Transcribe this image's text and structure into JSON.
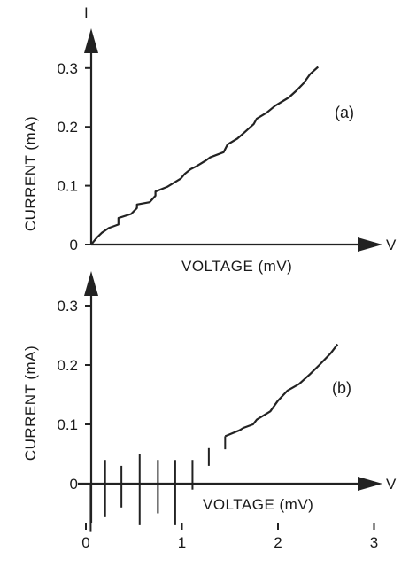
{
  "chart_data": [
    {
      "panel": "(a)",
      "type": "line",
      "xlabel": "VOLTAGE (mV)",
      "ylabel": "CURRENT (mA)",
      "x_axis_symbol": "V",
      "y_axis_symbol": "I",
      "ylim": [
        0,
        0.35
      ],
      "yticks": [
        "0",
        "0.1",
        "0.2",
        "0.3"
      ],
      "ytick_values": [
        0,
        0.1,
        0.2,
        0.3
      ],
      "series": [
        {
          "x": [
            0.0,
            0.02,
            0.06,
            0.11,
            0.18,
            0.28,
            0.28,
            0.41,
            0.47,
            0.47,
            0.6,
            0.66,
            0.66,
            0.78,
            0.83,
            0.92,
            0.96,
            1.02,
            1.08,
            1.18,
            1.22,
            1.36,
            1.4,
            1.5,
            1.57,
            1.67,
            1.7,
            1.8,
            1.89,
            1.97,
            2.03,
            2.11,
            2.18,
            2.25,
            2.33
          ],
          "y": [
            0.0,
            0.004,
            0.012,
            0.02,
            0.028,
            0.034,
            0.045,
            0.052,
            0.062,
            0.068,
            0.072,
            0.083,
            0.09,
            0.098,
            0.103,
            0.112,
            0.12,
            0.128,
            0.133,
            0.143,
            0.148,
            0.157,
            0.17,
            0.18,
            0.19,
            0.205,
            0.214,
            0.224,
            0.236,
            0.244,
            0.25,
            0.262,
            0.274,
            0.29,
            0.302
          ]
        }
      ]
    },
    {
      "panel": "(b)",
      "type": "line",
      "xlabel": "VOLTAGE (mV)",
      "ylabel": "CURRENT (mA)",
      "x_axis_symbol": "V",
      "xlim": [
        0,
        3
      ],
      "ylim": [
        -0.09,
        0.35
      ],
      "xticks": [
        "0",
        "1",
        "2",
        "3"
      ],
      "xtick_values": [
        0,
        1,
        2,
        3
      ],
      "yticks": [
        "0",
        "0.1",
        "0.2",
        "0.3"
      ],
      "ytick_values": [
        0,
        0.1,
        0.2,
        0.3
      ],
      "vertical_segments": [
        {
          "x": 0.05,
          "ymin": -0.08,
          "ymax": 0.0
        },
        {
          "x": 0.2,
          "ymin": -0.055,
          "ymax": 0.04
        },
        {
          "x": 0.37,
          "ymin": -0.04,
          "ymax": 0.03
        },
        {
          "x": 0.56,
          "ymin": -0.07,
          "ymax": 0.05
        },
        {
          "x": 0.75,
          "ymin": -0.05,
          "ymax": 0.04
        },
        {
          "x": 0.93,
          "ymin": -0.07,
          "ymax": 0.04
        },
        {
          "x": 1.11,
          "ymin": -0.01,
          "ymax": 0.04
        },
        {
          "x": 1.28,
          "ymin": 0.03,
          "ymax": 0.06
        },
        {
          "x": 1.45,
          "ymin": 0.058,
          "ymax": 0.08
        }
      ],
      "series": [
        {
          "x": [
            1.45,
            1.6,
            1.64,
            1.74,
            1.78,
            1.92,
            2.0,
            2.1,
            2.22,
            2.33,
            2.43,
            2.55,
            2.62
          ],
          "y": [
            0.08,
            0.09,
            0.094,
            0.1,
            0.108,
            0.122,
            0.14,
            0.157,
            0.168,
            0.184,
            0.2,
            0.22,
            0.235
          ]
        }
      ]
    }
  ]
}
